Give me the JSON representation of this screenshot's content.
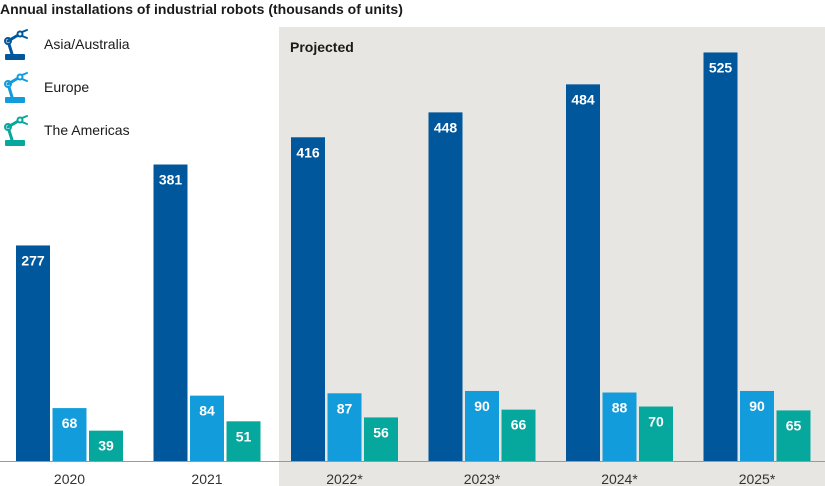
{
  "colors": {
    "asia": "#00579c",
    "europe": "#139cdc",
    "americas": "#06a79d",
    "projected_bg": "#e8e6e2",
    "axis": "#999999"
  },
  "icons": {
    "legend": "robot-arm-icon"
  },
  "chart_data": {
    "type": "bar",
    "title": "Annual installations of industrial robots (thousands of units)",
    "categories": [
      "2020",
      "2021",
      "2022*",
      "2023*",
      "2024*",
      "2025*"
    ],
    "series": [
      {
        "name": "Asia/Australia",
        "color_key": "asia",
        "values": [
          277,
          381,
          416,
          448,
          484,
          525
        ]
      },
      {
        "name": "Europe",
        "color_key": "europe",
        "values": [
          68,
          84,
          87,
          90,
          88,
          90
        ]
      },
      {
        "name": "The Americas",
        "color_key": "americas",
        "values": [
          39,
          51,
          56,
          66,
          70,
          65
        ]
      }
    ],
    "projected_label": "Projected",
    "projected_from_index": 2,
    "ylim": [
      0,
      550
    ],
    "xlabel": "",
    "ylabel": "",
    "legend_position": "top-left",
    "grid": false
  }
}
